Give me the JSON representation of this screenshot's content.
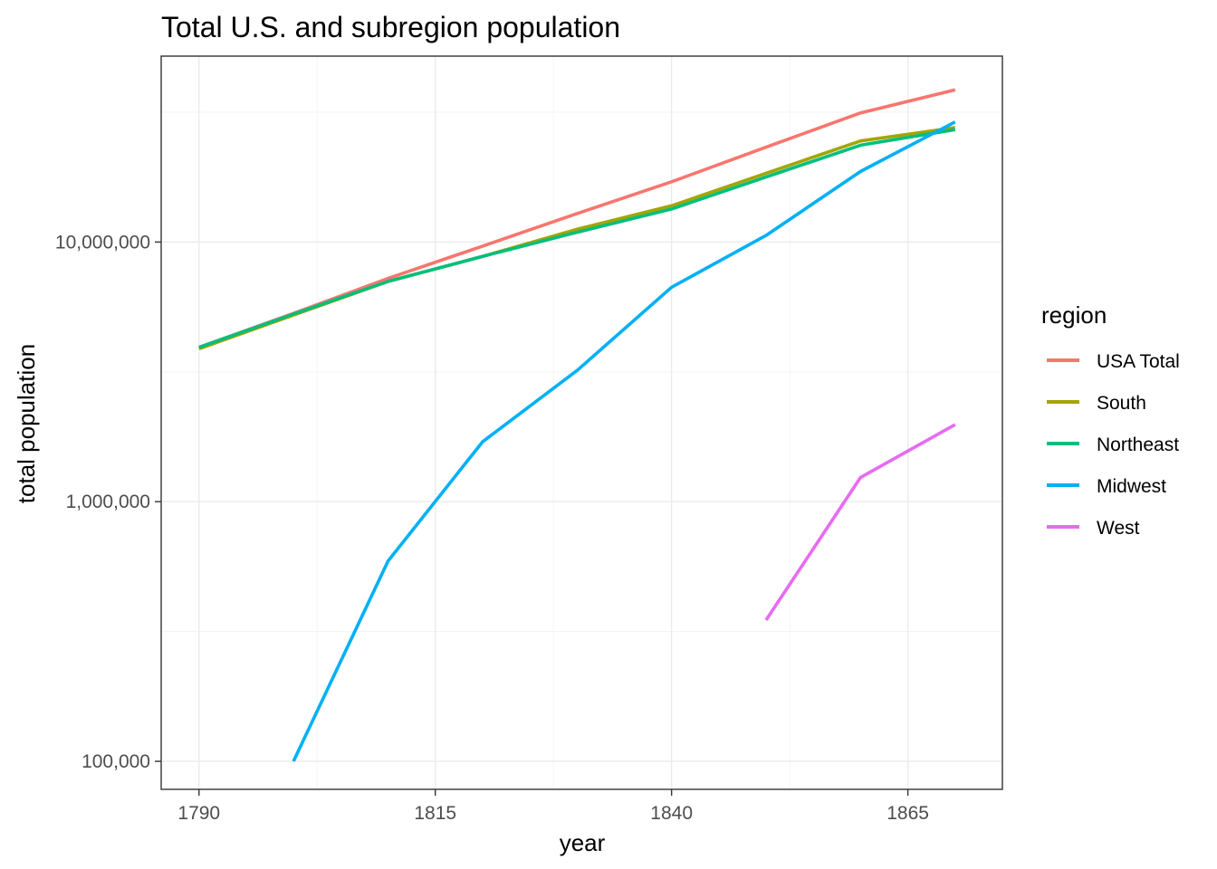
{
  "chart_data": {
    "type": "line",
    "title": "Total U.S. and subregion population",
    "xlabel": "year",
    "ylabel": "total population",
    "x_scale": "linear",
    "y_scale": "log10",
    "xlim": [
      1786,
      1875
    ],
    "ylim": [
      78000,
      52000000
    ],
    "x_ticks": [
      1790,
      1815,
      1840,
      1865
    ],
    "x_tick_labels": [
      "1790",
      "1815",
      "1840",
      "1865"
    ],
    "y_ticks": [
      100000,
      1000000,
      10000000
    ],
    "y_tick_labels": [
      "100,000",
      "1,000,000",
      "10,000,000"
    ],
    "grid": true,
    "legend": {
      "title": "region",
      "position": "right"
    },
    "series": [
      {
        "name": "USA Total",
        "color": "#F8766D",
        "x": [
          1790,
          1800,
          1810,
          1820,
          1830,
          1840,
          1850,
          1860,
          1870
        ],
        "y": [
          3930000,
          5310000,
          7240000,
          9640000,
          12870000,
          17070000,
          23190000,
          31440000,
          38560000
        ]
      },
      {
        "name": "South",
        "color": "#A3A500",
        "x": [
          1790,
          1800,
          1810,
          1820,
          1830,
          1840,
          1850,
          1860,
          1870
        ],
        "y": [
          3880000,
          5230000,
          7050000,
          8800000,
          11200000,
          13800000,
          18400000,
          24500000,
          27600000
        ]
      },
      {
        "name": "Northeast",
        "color": "#00BF7D",
        "x": [
          1790,
          1800,
          1810,
          1820,
          1830,
          1840,
          1850,
          1860,
          1870
        ],
        "y": [
          3930000,
          5280000,
          7050000,
          8800000,
          10900000,
          13400000,
          17800000,
          23600000,
          27100000
        ]
      },
      {
        "name": "Midwest",
        "color": "#00B0F6",
        "x": [
          1800,
          1810,
          1820,
          1830,
          1840,
          1850,
          1860,
          1870
        ],
        "y": [
          100000,
          590000,
          1700000,
          3200000,
          6700000,
          10600000,
          18700000,
          29000000
        ]
      },
      {
        "name": "West",
        "color": "#E76BF3",
        "x": [
          1850,
          1860,
          1870
        ],
        "y": [
          350000,
          1240000,
          1980000
        ]
      }
    ]
  }
}
